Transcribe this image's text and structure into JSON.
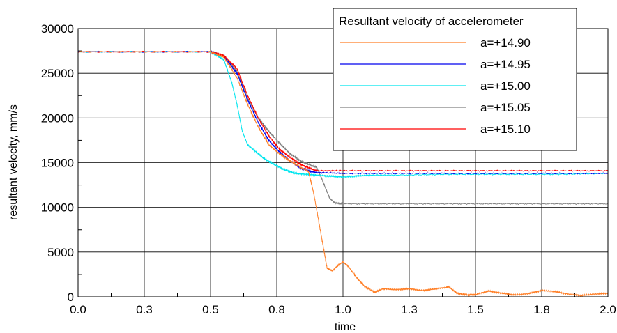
{
  "chart_data": {
    "type": "line",
    "title": "",
    "xlabel": "time",
    "ylabel": "resultant velocity, mm/s",
    "xlim": [
      0,
      2.0
    ],
    "ylim": [
      0,
      30000
    ],
    "x_ticks": [
      0.0,
      0.25,
      0.5,
      0.75,
      1.0,
      1.25,
      1.5,
      1.75,
      2.0
    ],
    "x_tick_labels": [
      "0.0",
      "0.3",
      "0.5",
      "0.8",
      "1.0",
      "1.3",
      "1.5",
      "1.8",
      "2.0"
    ],
    "y_ticks": [
      0,
      5000,
      10000,
      15000,
      20000,
      25000,
      30000
    ],
    "y_tick_labels": [
      "0",
      "5000",
      "10000",
      "15000",
      "20000",
      "25000",
      "30000"
    ],
    "grid": true,
    "legend": {
      "title": "Resultant velocity of accelerometer",
      "position": "top-right"
    },
    "series": [
      {
        "name": "a=+14.90",
        "color": "#ff7f27",
        "x": [
          0.0,
          0.5,
          0.55,
          0.6,
          0.64,
          0.68,
          0.72,
          0.76,
          0.8,
          0.84,
          0.87,
          0.89,
          0.92,
          0.94,
          0.96,
          0.98,
          1.0,
          1.02,
          1.05,
          1.08,
          1.12,
          1.15,
          1.2,
          1.25,
          1.3,
          1.35,
          1.4,
          1.43,
          1.47,
          1.5,
          1.55,
          1.6,
          1.65,
          1.7,
          1.75,
          1.8,
          1.85,
          1.9,
          1.95,
          2.0
        ],
        "y": [
          27400,
          27400,
          26800,
          24500,
          21500,
          19000,
          17000,
          16000,
          15200,
          14500,
          14000,
          11500,
          6500,
          3200,
          2900,
          3500,
          3900,
          3400,
          2200,
          1200,
          500,
          900,
          800,
          900,
          700,
          900,
          1100,
          400,
          200,
          250,
          650,
          400,
          200,
          350,
          700,
          600,
          300,
          150,
          300,
          400
        ]
      },
      {
        "name": "a=+14.95",
        "color": "#0000ee",
        "x": [
          0.0,
          0.5,
          0.55,
          0.6,
          0.64,
          0.68,
          0.72,
          0.76,
          0.8,
          0.84,
          0.88,
          0.9,
          1.0,
          1.2,
          1.4,
          1.6,
          1.8,
          2.0
        ],
        "y": [
          27400,
          27400,
          26900,
          25000,
          22000,
          19500,
          17500,
          16200,
          15200,
          14400,
          14000,
          13900,
          13800,
          13800,
          13800,
          13800,
          13800,
          13800
        ]
      },
      {
        "name": "a=+15.00",
        "color": "#00e5ee",
        "x": [
          0.0,
          0.5,
          0.55,
          0.58,
          0.6,
          0.62,
          0.64,
          0.66,
          0.7,
          0.74,
          0.78,
          0.82,
          0.86,
          0.9,
          0.95,
          1.0,
          1.05,
          1.1,
          1.2,
          1.4,
          1.6,
          1.8,
          2.0
        ],
        "y": [
          27400,
          27400,
          26500,
          24000,
          21500,
          18500,
          17000,
          16500,
          15500,
          14800,
          14200,
          13800,
          13700,
          13600,
          13500,
          13400,
          13500,
          13600,
          13600,
          13700,
          13700,
          13700,
          13800
        ]
      },
      {
        "name": "a=+15.05",
        "color": "#808080",
        "x": [
          0.0,
          0.5,
          0.55,
          0.6,
          0.64,
          0.68,
          0.72,
          0.76,
          0.8,
          0.84,
          0.87,
          0.9,
          0.92,
          0.95,
          0.97,
          1.0,
          1.2,
          1.4,
          1.6,
          1.8,
          2.0
        ],
        "y": [
          27400,
          27400,
          27000,
          25200,
          22200,
          20000,
          18500,
          17200,
          16000,
          15200,
          14800,
          14500,
          13200,
          11000,
          10500,
          10400,
          10400,
          10400,
          10400,
          10400,
          10400
        ]
      },
      {
        "name": "a=+15.10",
        "color": "#ff0000",
        "x": [
          0.0,
          0.5,
          0.55,
          0.6,
          0.64,
          0.68,
          0.72,
          0.76,
          0.8,
          0.84,
          0.88,
          0.9,
          1.0,
          1.2,
          1.4,
          1.6,
          1.8,
          2.0
        ],
        "y": [
          27400,
          27400,
          27000,
          25500,
          22500,
          20000,
          18000,
          16500,
          15600,
          14800,
          14300,
          14100,
          14100,
          14100,
          14100,
          14100,
          14100,
          14100
        ]
      }
    ]
  }
}
